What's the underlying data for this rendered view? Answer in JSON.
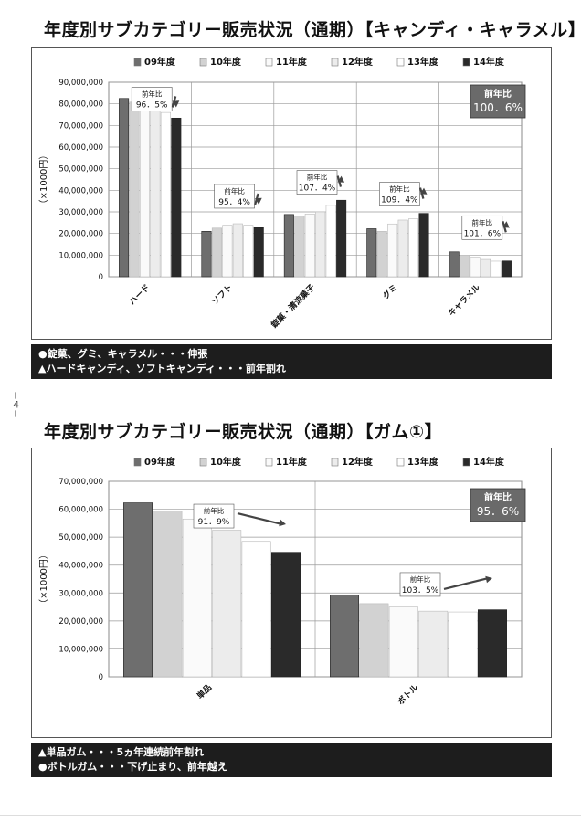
{
  "page": {
    "page_number": "－４－"
  },
  "sections": [
    {
      "title": "年度別サブカテゴリー販売状況（通期）【キャンディ・キャラメル】",
      "notes": [
        "●錠菓、グミ、キャラメル・・・伸張",
        "▲ハードキャンディ、ソフトキャンディ・・・前年割れ"
      ]
    },
    {
      "title": "年度別サブカテゴリー販売状況（通期）【ガム①】",
      "notes": [
        "▲単品ガム・・・5ヵ年連続前年割れ",
        "●ボトルガム・・・下げ止まり、前年越え"
      ]
    }
  ],
  "chart_data": [
    {
      "type": "bar",
      "ylabel": "（×1000円）",
      "ylim": [
        0,
        90000000
      ],
      "yticks": [
        "0",
        "10,000,000",
        "20,000,000",
        "30,000,000",
        "40,000,000",
        "50,000,000",
        "60,000,000",
        "70,000,000",
        "80,000,000",
        "90,000,000"
      ],
      "ytick_values": [
        0,
        10000000,
        20000000,
        30000000,
        40000000,
        50000000,
        60000000,
        70000000,
        80000000,
        90000000
      ],
      "grid": true,
      "legend": "top",
      "categories": [
        "ハード",
        "ソフト",
        "錠菓・清涼菓子",
        "グミ",
        "キャラメル"
      ],
      "series": [
        {
          "name": "09年度",
          "color": "#6e6e6e",
          "values": [
            82500000,
            21000000,
            28800000,
            22200000,
            11500000
          ]
        },
        {
          "name": "10年度",
          "color": "#d2d2d2",
          "values": [
            80800000,
            22500000,
            28000000,
            21000000,
            10000000
          ]
        },
        {
          "name": "11年度",
          "color": "#fafafa",
          "values": [
            80300000,
            23800000,
            29000000,
            24400000,
            9000000
          ]
        },
        {
          "name": "12年度",
          "color": "#ececec",
          "values": [
            77600000,
            24500000,
            30000000,
            26200000,
            8000000
          ]
        },
        {
          "name": "13年度",
          "color": "#ffffff",
          "values": [
            76000000,
            23800000,
            33000000,
            26800000,
            7200000
          ]
        },
        {
          "name": "14年度",
          "color": "#2a2a2a",
          "values": [
            73400000,
            22700000,
            35400000,
            29300000,
            7300000
          ]
        }
      ],
      "callouts": [
        {
          "category": "ハード",
          "label": "前年比",
          "value": "96．5%",
          "y": 86000000,
          "dir": "down"
        },
        {
          "category": "ソフト",
          "label": "前年比",
          "value": "95．4%",
          "y": 41000000,
          "dir": "down"
        },
        {
          "category": "錠菓・清涼菓子",
          "label": "前年比",
          "value": "107．4%",
          "y": 47500000,
          "dir": "up"
        },
        {
          "category": "グミ",
          "label": "前年比",
          "value": "109．4%",
          "y": 42000000,
          "dir": "up"
        },
        {
          "category": "キャラメル",
          "label": "前年比",
          "value": "101．6%",
          "y": 26500000,
          "dir": "up"
        }
      ],
      "total": {
        "label": "前年比",
        "value": "100．6%"
      }
    },
    {
      "type": "bar",
      "ylabel": "（×1000円）",
      "ylim": [
        0,
        70000000
      ],
      "yticks": [
        "0",
        "10,000,000",
        "20,000,000",
        "30,000,000",
        "40,000,000",
        "50,000,000",
        "60,000,000",
        "70,000,000"
      ],
      "ytick_values": [
        0,
        10000000,
        20000000,
        30000000,
        40000000,
        50000000,
        60000000,
        70000000
      ],
      "grid": true,
      "legend": "top",
      "categories": [
        "単品",
        "ボトル"
      ],
      "series": [
        {
          "name": "09年度",
          "color": "#6e6e6e",
          "values": [
            62300000,
            29300000
          ]
        },
        {
          "name": "10年度",
          "color": "#d2d2d2",
          "values": [
            59300000,
            26200000
          ]
        },
        {
          "name": "11年度",
          "color": "#fafafa",
          "values": [
            56500000,
            25000000
          ]
        },
        {
          "name": "12年度",
          "color": "#ececec",
          "values": [
            52500000,
            23500000
          ]
        },
        {
          "name": "13年度",
          "color": "#ffffff",
          "values": [
            48500000,
            23200000
          ]
        },
        {
          "name": "14年度",
          "color": "#2a2a2a",
          "values": [
            44600000,
            24000000
          ]
        }
      ],
      "callouts": [
        {
          "category": "単品",
          "label": "前年比",
          "value": "91．9%",
          "y": 60500000,
          "dir": "down"
        },
        {
          "category": "ボトル",
          "label": "前年比",
          "value": "103．5%",
          "y": 36000000,
          "dir": "up"
        }
      ],
      "total": {
        "label": "前年比",
        "value": "95．6%"
      }
    }
  ]
}
